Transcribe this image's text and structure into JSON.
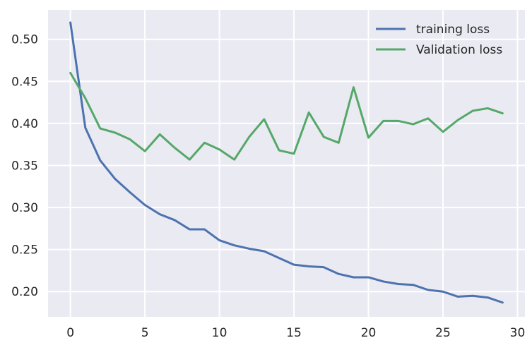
{
  "chart_data": {
    "type": "line",
    "title": "",
    "xlabel": "",
    "ylabel": "",
    "xlim": [
      -1.5,
      30.5
    ],
    "ylim": [
      0.17,
      0.535
    ],
    "xticks": [
      0,
      5,
      10,
      15,
      20,
      25,
      30
    ],
    "yticks": [
      0.2,
      0.25,
      0.3,
      0.35,
      0.4,
      0.45,
      0.5
    ],
    "grid": true,
    "legend_position": "top-right",
    "background": "#EAEAF2",
    "x": [
      0,
      1,
      2,
      3,
      4,
      5,
      6,
      7,
      8,
      9,
      10,
      11,
      12,
      13,
      14,
      15,
      16,
      17,
      18,
      19,
      20,
      21,
      22,
      23,
      24,
      25,
      26,
      27,
      28,
      29
    ],
    "series": [
      {
        "name": "training loss",
        "color": "#4C72B0",
        "values": [
          0.52,
          0.395,
          0.356,
          0.334,
          0.318,
          0.303,
          0.292,
          0.285,
          0.274,
          0.274,
          0.261,
          0.255,
          0.251,
          0.248,
          0.24,
          0.232,
          0.23,
          0.229,
          0.221,
          0.217,
          0.217,
          0.212,
          0.209,
          0.208,
          0.202,
          0.2,
          0.194,
          0.195,
          0.193,
          0.187
        ]
      },
      {
        "name": "Validation loss",
        "color": "#55A868",
        "values": [
          0.46,
          0.43,
          0.394,
          0.389,
          0.381,
          0.367,
          0.387,
          0.371,
          0.357,
          0.377,
          0.369,
          0.357,
          0.384,
          0.405,
          0.368,
          0.364,
          0.413,
          0.384,
          0.377,
          0.443,
          0.383,
          0.403,
          0.403,
          0.399,
          0.406,
          0.39,
          0.404,
          0.415,
          0.418,
          0.412
        ]
      }
    ]
  }
}
